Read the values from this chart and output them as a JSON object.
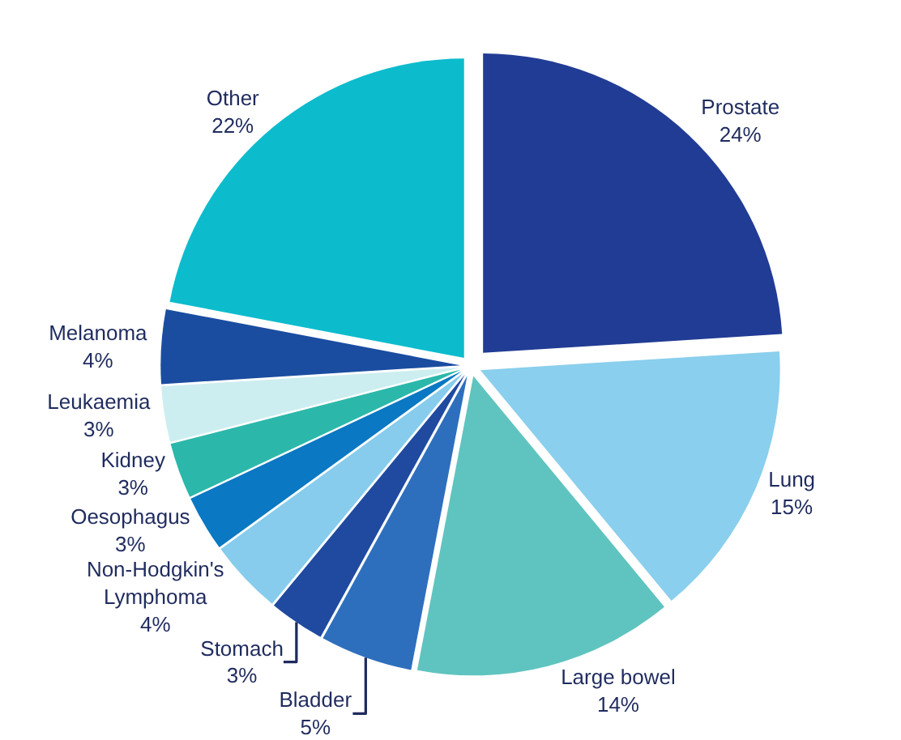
{
  "chart_data": {
    "type": "pie",
    "categories": [
      "Prostate",
      "Lung",
      "Large bowel",
      "Bladder",
      "Stomach",
      "Non-Hodgkin's\nLymphoma",
      "Oesophagus",
      "Kidney",
      "Leukaemia",
      "Melanoma",
      "Other"
    ],
    "values": [
      24,
      15,
      14,
      5,
      3,
      4,
      3,
      3,
      3,
      4,
      22
    ],
    "value_labels": [
      "24%",
      "15%",
      "14%",
      "5%",
      "3%",
      "4%",
      "3%",
      "3%",
      "3%",
      "4%",
      "22%"
    ],
    "colors": [
      "#213c94",
      "#8acfed",
      "#5fc4bf",
      "#2e6fbd",
      "#1f4aa0",
      "#87ccec",
      "#0a78c2",
      "#2bb8aa",
      "#cdeef0",
      "#1a4da0",
      "#0cbccd"
    ],
    "legend": false
  }
}
